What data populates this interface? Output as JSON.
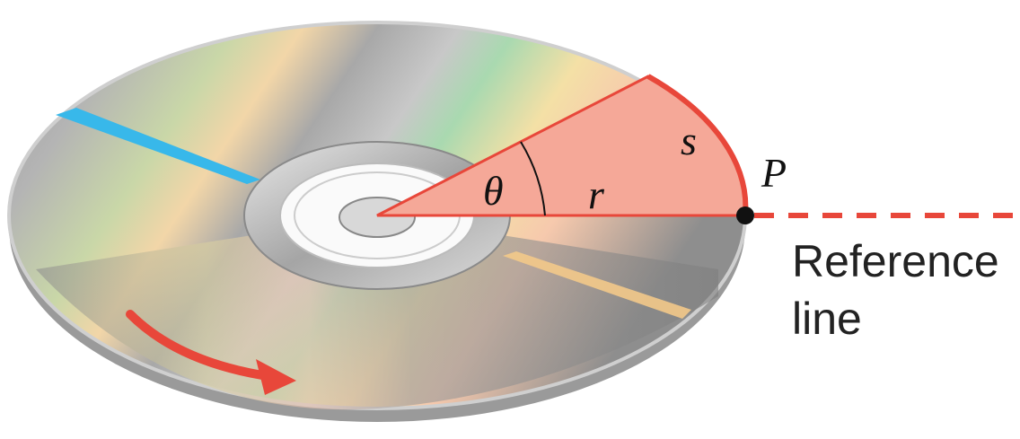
{
  "labels": {
    "theta": "θ",
    "r": "r",
    "s": "s",
    "point": "P",
    "reference": [
      "Reference",
      "line"
    ]
  }
}
